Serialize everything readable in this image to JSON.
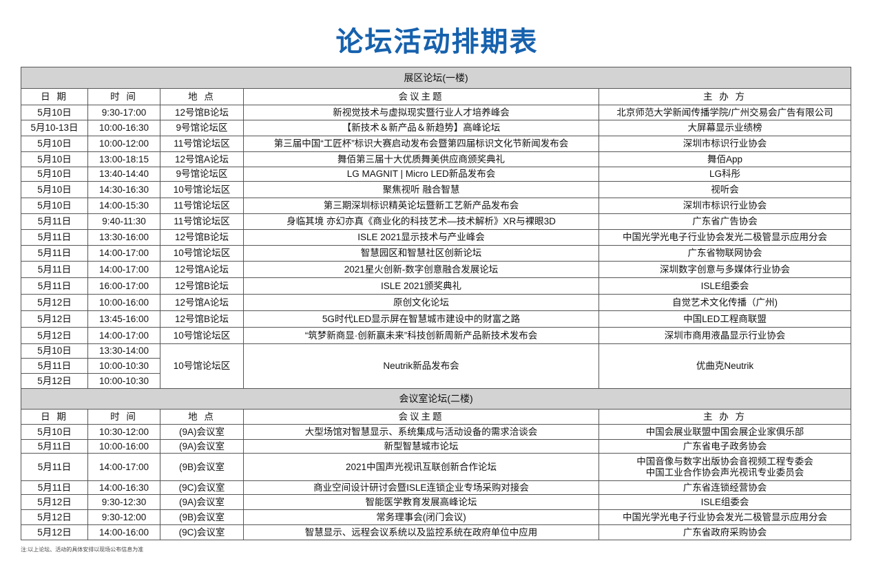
{
  "title": "论坛活动排期表",
  "columns": [
    "日 期",
    "时 间",
    "地 点",
    "会议主题",
    "主 办 方"
  ],
  "sections": [
    {
      "heading": "展区论坛(一楼)",
      "rows": [
        {
          "dates": [
            "5月10日"
          ],
          "times": [
            "9:30-17:00"
          ],
          "venue": "12号馆B论坛",
          "topic": [
            "新视觉技术与虚拟现实暨行业人才培养峰会"
          ],
          "organizer": [
            "北京师范大学新闻传播学院/广州交易会广告有限公司"
          ]
        },
        {
          "dates": [
            "5月10-13日"
          ],
          "times": [
            "10:00-16:30"
          ],
          "venue": "9号馆论坛区",
          "topic": [
            "【新技术＆新产品＆新趋势】高峰论坛"
          ],
          "organizer": [
            "大屏幕显示业绩榜"
          ]
        },
        {
          "dates": [
            "5月10日"
          ],
          "times": [
            "10:00-12:00"
          ],
          "venue": "11号馆论坛区",
          "topic": [
            "第三届中国“工匠杯”标识大赛启动发布会暨第四届标识文化节新闻发布会"
          ],
          "organizer": [
            "深圳市标识行业协会"
          ]
        },
        {
          "dates": [
            "5月10日"
          ],
          "times": [
            "13:00-18:15"
          ],
          "venue": "12号馆A论坛",
          "topic": [
            "舞佰第三届十大优质舞美供应商颁奖典礼"
          ],
          "organizer": [
            "舞佰App"
          ]
        },
        {
          "dates": [
            "5月10日"
          ],
          "times": [
            "13:40-14:40"
          ],
          "venue": "9号馆论坛区",
          "topic": [
            "LG MAGNIT | Micro LED新品发布会"
          ],
          "organizer": [
            "LG科彤"
          ]
        },
        {
          "dates": [
            "5月10日"
          ],
          "times": [
            "14:30-16:30"
          ],
          "venue": "10号馆论坛区",
          "topic": [
            "聚焦视听 融合智慧"
          ],
          "organizer": [
            "视听会"
          ]
        },
        {
          "dates": [
            "5月10日"
          ],
          "times": [
            "14:00-15:30"
          ],
          "venue": "11号馆论坛区",
          "topic": [
            "第三期深圳标识精英论坛暨新工艺新产品发布会"
          ],
          "organizer": [
            "深圳市标识行业协会"
          ]
        },
        {
          "dates": [
            "5月11日"
          ],
          "times": [
            "9:40-11:30"
          ],
          "venue": "11号馆论坛区",
          "topic": [
            "身临其境 亦幻亦真《商业化的科技艺术—技术解析》XR与裸眼3D"
          ],
          "organizer": [
            "广东省广告协会"
          ]
        },
        {
          "dates": [
            "5月11日"
          ],
          "times": [
            "13:30-16:00"
          ],
          "venue": "12号馆B论坛",
          "topic": [
            "ISLE 2021显示技术与产业峰会"
          ],
          "organizer": [
            "中国光学光电子行业协会发光二极管显示应用分会"
          ]
        },
        {
          "dates": [
            "5月11日"
          ],
          "times": [
            "14:00-17:00"
          ],
          "venue": "10号馆论坛区",
          "topic": [
            "智慧园区和智慧社区创新论坛"
          ],
          "organizer": [
            "广东省物联网协会"
          ]
        },
        {
          "dates": [
            "5月11日"
          ],
          "times": [
            "14:00-17:00"
          ],
          "venue": "12号馆A论坛",
          "topic": [
            "2021星火创新-数字创意融合发展论坛"
          ],
          "organizer": [
            "深圳数字创意与多媒体行业协会"
          ]
        },
        {
          "dates": [
            "5月11日"
          ],
          "times": [
            "16:00-17:00"
          ],
          "venue": "12号馆B论坛",
          "topic": [
            "ISLE 2021颁奖典礼"
          ],
          "organizer": [
            "ISLE组委会"
          ]
        },
        {
          "dates": [
            "5月12日"
          ],
          "times": [
            "10:00-16:00"
          ],
          "venue": "12号馆A论坛",
          "topic": [
            "原创文化论坛"
          ],
          "organizer": [
            "自觉艺术文化传播（广州)"
          ]
        },
        {
          "dates": [
            "5月12日"
          ],
          "times": [
            "13:45-16:00"
          ],
          "venue": "12号馆B论坛",
          "topic": [
            "5G时代LED显示屏在智慧城市建设中的财富之路"
          ],
          "organizer": [
            "中国LED工程商联盟"
          ]
        },
        {
          "dates": [
            "5月12日"
          ],
          "times": [
            "14:00-17:00"
          ],
          "venue": "10号馆论坛区",
          "topic": [
            "“筑梦新商显·创新赢未来”科技创新周新产品新技术发布会"
          ],
          "organizer": [
            "深圳市商用液晶显示行业协会"
          ]
        },
        {
          "dates": [
            "5月10日",
            "5月11日",
            "5月12日"
          ],
          "times": [
            "13:30-14:00",
            "10:00-10:30",
            "10:00-10:30"
          ],
          "venue": "10号馆论坛区",
          "topic": [
            "Neutrik新品发布会"
          ],
          "organizer": [
            "优曲克Neutrik"
          ]
        }
      ]
    },
    {
      "heading": "会议室论坛(二楼)",
      "rows": [
        {
          "dates": [
            "5月10日"
          ],
          "times": [
            "10:30-12:00"
          ],
          "venue": "(9A)会议室",
          "topic": [
            "大型场馆对智慧显示、系统集成与活动设备的需求洽谈会"
          ],
          "organizer": [
            "中国会展业联盟中国会展企业家俱乐部"
          ]
        },
        {
          "dates": [
            "5月11日"
          ],
          "times": [
            "10:00-16:00"
          ],
          "venue": "(9A)会议室",
          "topic": [
            "新型智慧城市论坛"
          ],
          "organizer": [
            "广东省电子政务协会"
          ]
        },
        {
          "dates": [
            "5月11日"
          ],
          "times": [
            "14:00-17:00"
          ],
          "venue": "(9B)会议室",
          "topic": [
            "2021中国声光视讯互联创新合作论坛"
          ],
          "organizer": [
            "中国音像与数字出版协会音视频工程专委会",
            "中国工业合作协会声光视讯专业委员会"
          ]
        },
        {
          "dates": [
            "5月11日"
          ],
          "times": [
            "14:00-16:30"
          ],
          "venue": "(9C)会议室",
          "topic": [
            "商业空间设计研讨会暨ISLE连锁企业专场采购对接会"
          ],
          "organizer": [
            "广东省连锁经营协会"
          ]
        },
        {
          "dates": [
            "5月12日"
          ],
          "times": [
            "9:30-12:30"
          ],
          "venue": "(9A)会议室",
          "topic": [
            "智能医学教育发展高峰论坛"
          ],
          "organizer": [
            "ISLE组委会"
          ]
        },
        {
          "dates": [
            "5月12日"
          ],
          "times": [
            "9:30-12:00"
          ],
          "venue": "(9B)会议室",
          "topic": [
            "常务理事会(闭门会议)"
          ],
          "organizer": [
            "中国光学光电子行业协会发光二极管显示应用分会"
          ]
        },
        {
          "dates": [
            "5月12日"
          ],
          "times": [
            "14:00-16:00"
          ],
          "venue": "(9C)会议室",
          "topic": [
            "智慧显示、远程会议系统以及监控系统在政府单位中应用"
          ],
          "organizer": [
            "广东省政府采购协会"
          ]
        }
      ]
    }
  ],
  "footnote": "注:以上论坛、活动的具体安排以现场公布信息为准",
  "colors": {
    "title": "#1661ad",
    "section_bg": "#d3d3d3",
    "border": "#555555"
  }
}
